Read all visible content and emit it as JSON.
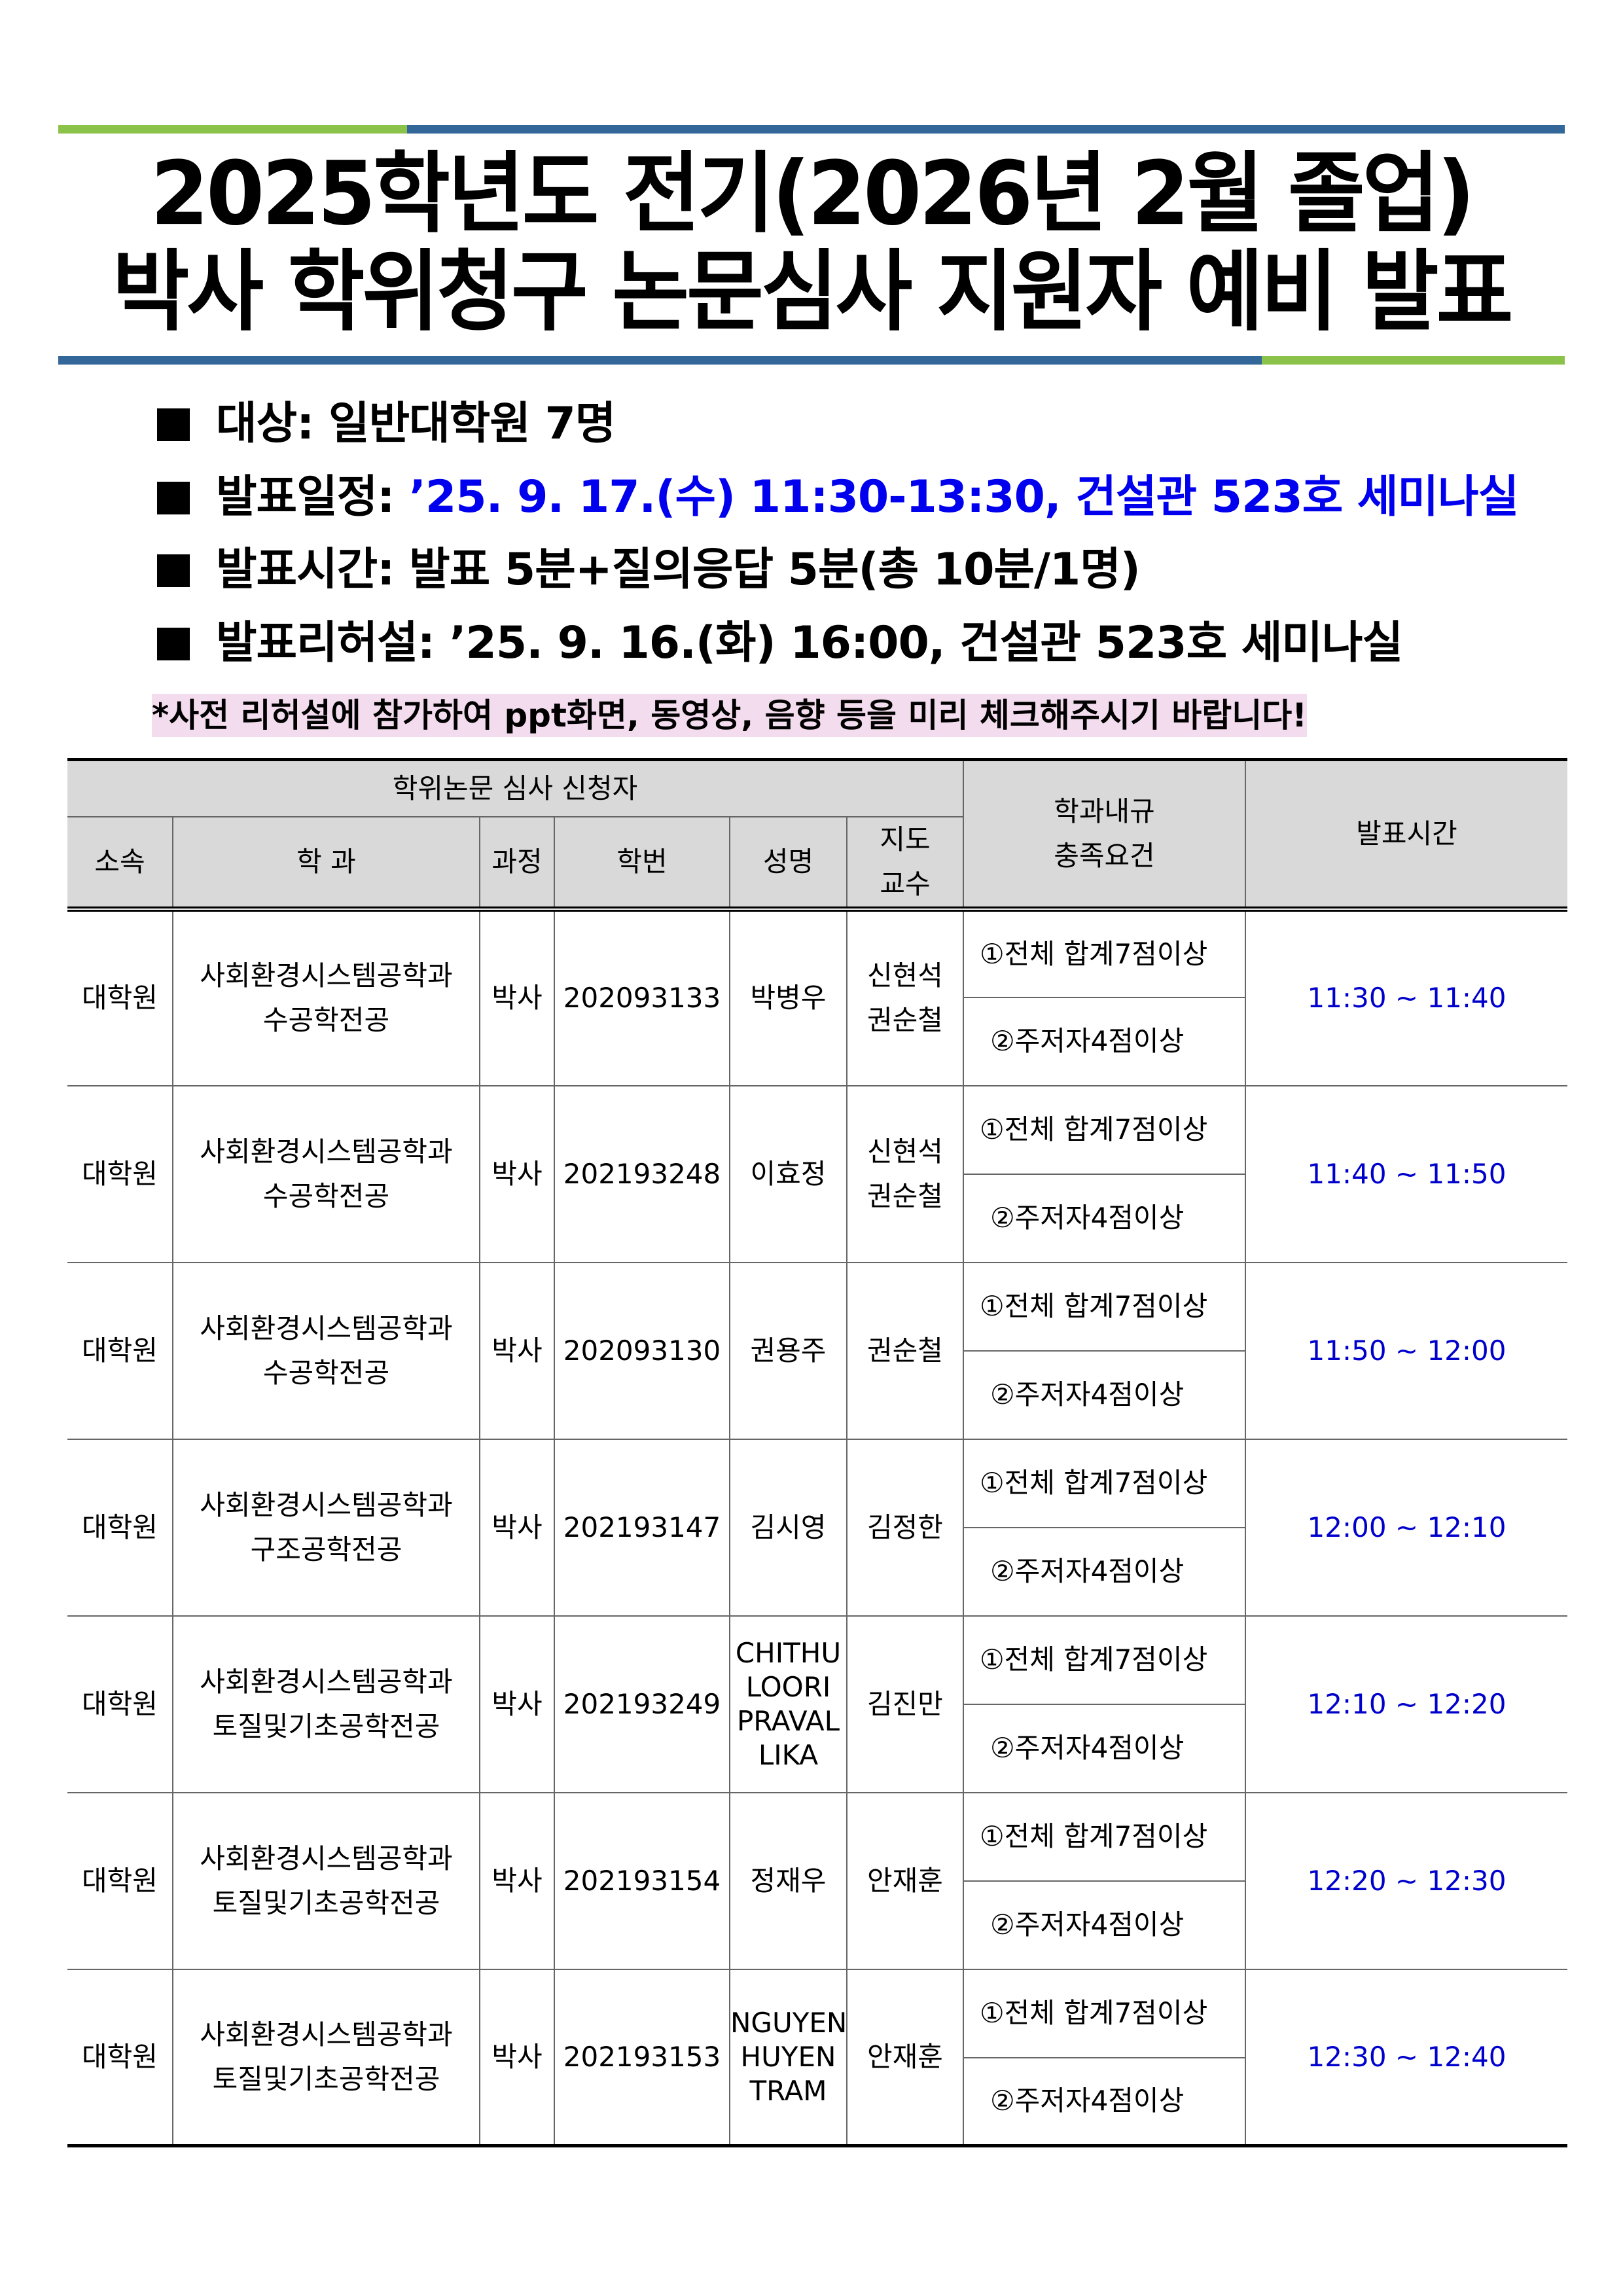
{
  "colors": {
    "green": "#8bc34a",
    "blue_bar": "#336699",
    "link_blue": "#0000ee",
    "note_bg": "#f4dcef",
    "header_bg": "#d9d9d9"
  },
  "title": {
    "line1": "2025학년도 전기(2026년 2월 졸업)",
    "line2": "박사 학위청구 논문심사 지원자 예비 발표"
  },
  "bullets": [
    {
      "label": "대상:",
      "value": "일반대학원 7명"
    },
    {
      "label": "발표일정:",
      "value": "’25. 9. 17.(수) 11:30-13:30, 건설관 523호 세미나실"
    },
    {
      "label": "발표시간:",
      "value": "발표 5분+질의응답 5분(총 10분/1명)"
    },
    {
      "label": "발표리허설:",
      "value": "’25. 9. 16.(화) 16:00, 건설관 523호 세미나실"
    }
  ],
  "note": "*사전 리허설에 참가하여 ppt화면, 동영상, 음향 등을 미리 체크해주시기 바랍니다!",
  "table": {
    "group_header": "학위논문 심사 신청자",
    "req_header": "학과내규\n충족요건",
    "time_header": "발표시간",
    "headers": {
      "affil": "소속",
      "dept": "학 과",
      "course": "과정",
      "id": "학번",
      "name": "성명",
      "advisor": "지도\n교수"
    },
    "rows": [
      {
        "affil": "대학원",
        "dept": "사회환경시스템공학과\n수공학전공",
        "course": "박사",
        "id": "202093133",
        "name": "박병우",
        "advisor": "신현석\n권순철",
        "req1": "①전체 합계7점이상",
        "req2": "②주저자4점이상",
        "time": "11:30 ~ 11:40"
      },
      {
        "affil": "대학원",
        "dept": "사회환경시스템공학과\n수공학전공",
        "course": "박사",
        "id": "202193248",
        "name": "이효정",
        "advisor": "신현석\n권순철",
        "req1": "①전체 합계7점이상",
        "req2": "②주저자4점이상",
        "time": "11:40 ~ 11:50"
      },
      {
        "affil": "대학원",
        "dept": "사회환경시스템공학과\n수공학전공",
        "course": "박사",
        "id": "202093130",
        "name": "권용주",
        "advisor": "권순철",
        "req1": "①전체 합계7점이상",
        "req2": "②주저자4점이상",
        "time": "11:50 ~ 12:00"
      },
      {
        "affil": "대학원",
        "dept": "사회환경시스템공학과\n구조공학전공",
        "course": "박사",
        "id": "202193147",
        "name": "김시영",
        "advisor": "김정한",
        "req1": "①전체 합계7점이상",
        "req2": "②주저자4점이상",
        "time": "12:00 ~ 12:10"
      },
      {
        "affil": "대학원",
        "dept": "사회환경시스템공학과\n토질및기초공학전공",
        "course": "박사",
        "id": "202193249",
        "name": "CHITHU\nLOORI\nPRAVAL\nLIKA",
        "advisor": "김진만",
        "req1": "①전체 합계7점이상",
        "req2": "②주저자4점이상",
        "time": "12:10 ~ 12:20"
      },
      {
        "affil": "대학원",
        "dept": "사회환경시스템공학과\n토질및기초공학전공",
        "course": "박사",
        "id": "202193154",
        "name": "정재우",
        "advisor": "안재훈",
        "req1": "①전체 합계7점이상",
        "req2": "②주저자4점이상",
        "time": "12:20 ~ 12:30"
      },
      {
        "affil": "대학원",
        "dept": "사회환경시스템공학과\n토질및기초공학전공",
        "course": "박사",
        "id": "202193153",
        "name": "NGUYEN\nHUYEN\nTRAM",
        "advisor": "안재훈",
        "req1": "①전체 합계7점이상",
        "req2": "②주저자4점이상",
        "time": "12:30 ~ 12:40"
      }
    ]
  }
}
